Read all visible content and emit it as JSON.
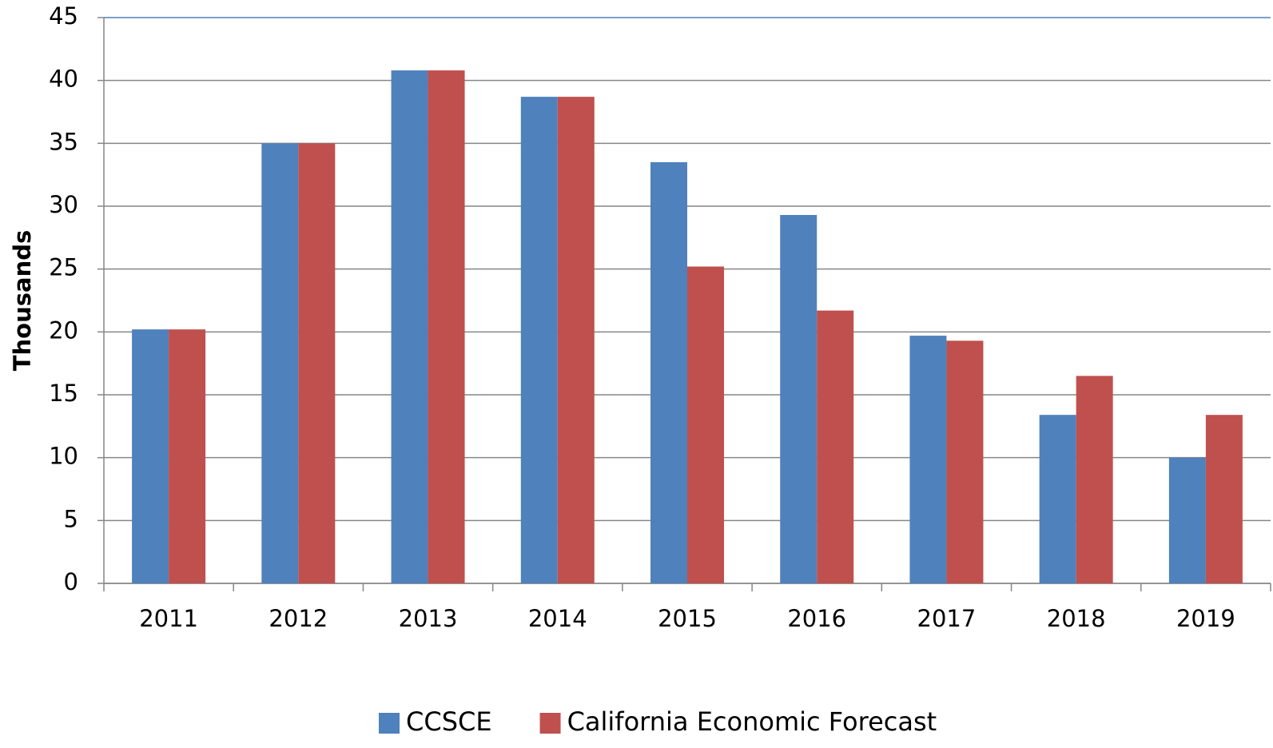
{
  "chart_data": {
    "type": "bar",
    "y_label": "Thousands",
    "categories": [
      "2011",
      "2012",
      "2013",
      "2014",
      "2015",
      "2016",
      "2017",
      "2018",
      "2019"
    ],
    "series": [
      {
        "name": "CCSCE",
        "color": "#4f81bd",
        "values": [
          20.2,
          35,
          40.8,
          38.7,
          33.5,
          29.3,
          19.7,
          13.4,
          10
        ]
      },
      {
        "name": "California Economic Forecast",
        "color": "#c0504d",
        "values": [
          20.2,
          35,
          40.8,
          38.7,
          25.2,
          21.7,
          19.3,
          16.5,
          13.4
        ]
      }
    ],
    "ylim": [
      0,
      45
    ],
    "yticks": [
      0,
      5,
      10,
      15,
      20,
      25,
      30,
      35,
      40,
      45
    ],
    "grid": true,
    "legend": "bottom"
  }
}
